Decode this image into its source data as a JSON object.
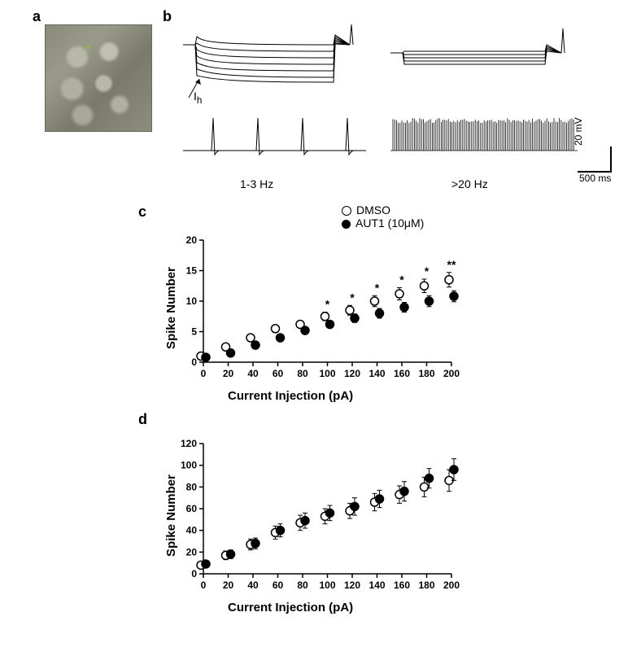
{
  "panel_labels": {
    "a": "a",
    "b": "b",
    "c": "c",
    "d": "d"
  },
  "panel_b": {
    "ih_label": "I",
    "ih_sub": "h",
    "freq_left": "1-3 Hz",
    "freq_right": ">20 Hz",
    "scale_v": "20 mV",
    "scale_t": "500 ms",
    "trace_color": "#000000",
    "background": "#ffffff"
  },
  "legend": {
    "dmso": "DMSO",
    "aut1": "AUT1 (10μM)"
  },
  "chart_c": {
    "type": "scatter",
    "ylabel": "Spike Number",
    "xlabel": "Current Injection (pA)",
    "title_fontsize": 15,
    "label_fontsize": 15,
    "tick_fontsize": 12,
    "xlim": [
      0,
      200
    ],
    "ylim": [
      0,
      20
    ],
    "xtick_step": 20,
    "yticks": [
      0,
      5,
      10,
      15,
      20
    ],
    "marker_size": 5,
    "background_color": "#ffffff",
    "axis_color": "#000000",
    "series": [
      {
        "name": "DMSO",
        "marker": "open-circle",
        "color": "#000000",
        "fill": "#ffffff",
        "x": [
          0,
          20,
          40,
          60,
          80,
          100,
          120,
          140,
          160,
          180,
          200
        ],
        "y": [
          1.0,
          2.5,
          4.0,
          5.5,
          6.2,
          7.5,
          8.5,
          10.0,
          11.2,
          12.5,
          13.5
        ],
        "err": [
          0.3,
          0.4,
          0.5,
          0.6,
          0.6,
          0.7,
          0.8,
          0.9,
          1.0,
          1.1,
          1.2
        ]
      },
      {
        "name": "AUT1",
        "marker": "filled-circle",
        "color": "#000000",
        "fill": "#000000",
        "x": [
          0,
          20,
          40,
          60,
          80,
          100,
          120,
          140,
          160,
          180,
          200
        ],
        "y": [
          0.8,
          1.5,
          2.8,
          4.0,
          5.2,
          6.2,
          7.2,
          8.0,
          9.0,
          10.0,
          10.8
        ],
        "err": [
          0.3,
          0.4,
          0.5,
          0.5,
          0.5,
          0.6,
          0.7,
          0.8,
          0.8,
          0.9,
          0.9
        ]
      }
    ],
    "sig": {
      "x": [
        100,
        120,
        140,
        160,
        180,
        200
      ],
      "labels": [
        "*",
        "*",
        "*",
        "*",
        "*",
        "**"
      ]
    }
  },
  "chart_d": {
    "type": "scatter",
    "ylabel": "Spike Number",
    "xlabel": "Current Injection (pA)",
    "title_fontsize": 15,
    "label_fontsize": 15,
    "tick_fontsize": 12,
    "xlim": [
      0,
      200
    ],
    "ylim": [
      0,
      120
    ],
    "xtick_step": 20,
    "yticks": [
      0,
      20,
      40,
      60,
      80,
      100,
      120
    ],
    "marker_size": 5,
    "background_color": "#ffffff",
    "axis_color": "#000000",
    "series": [
      {
        "name": "DMSO",
        "marker": "open-circle",
        "color": "#000000",
        "fill": "#ffffff",
        "x": [
          0,
          20,
          40,
          60,
          80,
          100,
          120,
          140,
          160,
          180,
          200
        ],
        "y": [
          8,
          17,
          27,
          38,
          47,
          53,
          58,
          66,
          73,
          80,
          86
        ],
        "err": [
          3,
          4,
          5,
          6,
          7,
          7,
          7,
          8,
          8,
          9,
          10
        ]
      },
      {
        "name": "AUT1",
        "marker": "filled-circle",
        "color": "#000000",
        "fill": "#000000",
        "x": [
          0,
          20,
          40,
          60,
          80,
          100,
          120,
          140,
          160,
          180,
          200
        ],
        "y": [
          9,
          18,
          28,
          40,
          49,
          56,
          62,
          69,
          76,
          88,
          96
        ],
        "err": [
          3,
          4,
          5,
          6,
          7,
          7,
          8,
          8,
          9,
          9,
          10
        ]
      }
    ]
  }
}
